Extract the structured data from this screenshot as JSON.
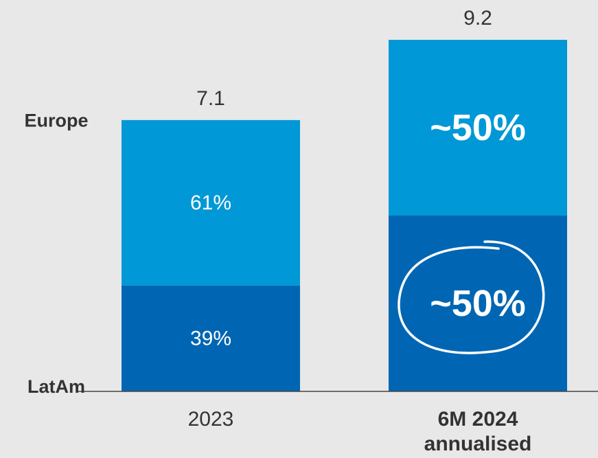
{
  "chart_data": {
    "type": "bar",
    "stacked": true,
    "categories": [
      "2023",
      "6M 2024 annualised"
    ],
    "category_label_lines": [
      [
        "2023"
      ],
      [
        "6M 2024",
        "annualised"
      ]
    ],
    "category_bold": [
      false,
      true
    ],
    "totals": [
      7.1,
      9.2
    ],
    "series": [
      {
        "name": "LatAm",
        "color": "#0066b3",
        "shares": [
          0.39,
          0.5
        ],
        "labels": [
          "39%",
          "~50%"
        ],
        "emphasis": [
          false,
          true
        ]
      },
      {
        "name": "Europe",
        "color": "#0098d6",
        "shares": [
          0.61,
          0.5
        ],
        "labels": [
          "61%",
          "~50%"
        ],
        "emphasis": [
          false,
          true
        ]
      }
    ],
    "highlight": {
      "category_index": 1,
      "series": "LatAm",
      "shape": "circle",
      "color": "#ffffff"
    },
    "ylim": [
      0,
      9.2
    ],
    "grid": false,
    "legend": "left"
  }
}
